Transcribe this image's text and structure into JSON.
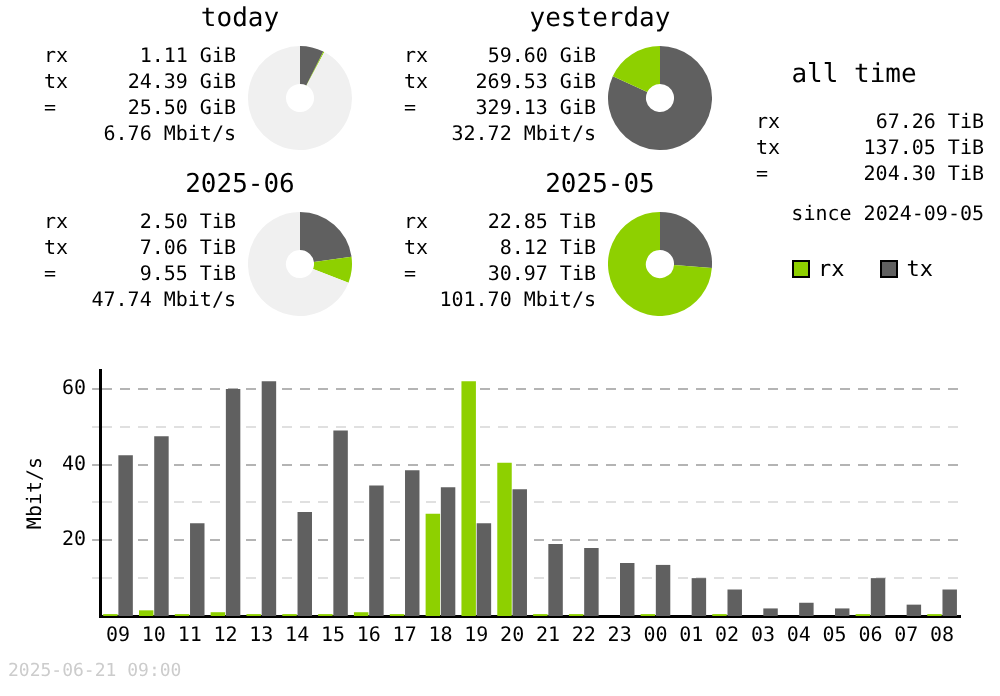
{
  "chart_data": [
    {
      "type": "donut",
      "title": "today",
      "categories": [
        null,
        null,
        null
      ],
      "values": [
        7.41,
        0.34,
        92.25
      ],
      "colors": [
        "#606060",
        "#8ed000",
        "#f0f0f0"
      ],
      "annotations": [
        "rx",
        "1.11 GiB",
        "tx",
        "24.39 GiB",
        "=",
        "25.50 GiB",
        "6.76 Mbit/s"
      ]
    },
    {
      "type": "donut",
      "title": "yesterday",
      "categories": [
        null,
        null
      ],
      "values": [
        81.89,
        18.11
      ],
      "colors": [
        "#606060",
        "#8ed000"
      ],
      "annotations": [
        "rx",
        "59.60 GiB",
        "tx",
        "269.53 GiB",
        "=",
        "329.13 GiB",
        "32.72 Mbit/s"
      ]
    },
    {
      "type": "donut",
      "title": "2025-06",
      "categories": [
        null,
        null,
        null
      ],
      "values": [
        22.8,
        8.07,
        69.13
      ],
      "colors": [
        "#606060",
        "#8ed000",
        "#f0f0f0"
      ],
      "annotations": [
        "rx",
        "2.50 TiB",
        "tx",
        "7.06 TiB",
        "=",
        "9.55 TiB",
        "47.74 Mbit/s"
      ]
    },
    {
      "type": "donut",
      "title": "2025-05",
      "categories": [
        null,
        null
      ],
      "values": [
        26.22,
        73.78
      ],
      "colors": [
        "#606060",
        "#8ed000"
      ],
      "annotations": [
        "rx",
        "22.85 TiB",
        "tx",
        "8.12 TiB",
        "=",
        "30.97 TiB",
        "101.70 Mbit/s"
      ]
    },
    {
      "type": "other",
      "title": "all time",
      "annotations": [
        "rx",
        "67.26 TiB",
        "tx",
        "137.05 TiB",
        "=",
        "204.30 TiB",
        "since 2024-09-05"
      ]
    },
    {
      "type": "bar",
      "ylabel": "Mbit/s",
      "categories": [
        "09",
        "10",
        "11",
        "12",
        "13",
        "14",
        "15",
        "16",
        "17",
        "18",
        "19",
        "20",
        "21",
        "22",
        "23",
        "00",
        "01",
        "02",
        "03",
        "04",
        "05",
        "06",
        "07",
        "08"
      ],
      "series": [
        {
          "name": "rx",
          "color": "#8ed000",
          "values": [
            0.5,
            1.5,
            0.5,
            1,
            0.5,
            0.5,
            0.5,
            1,
            0.5,
            27,
            62,
            40.5,
            0.5,
            0.5,
            0,
            0.5,
            0,
            0.5,
            0,
            0,
            0,
            0.5,
            0,
            0.5
          ]
        },
        {
          "name": "tx",
          "color": "#606060",
          "values": [
            42.5,
            47.5,
            24.5,
            60,
            62,
            27.5,
            49,
            34.5,
            38.5,
            34,
            24.5,
            33.5,
            19,
            18,
            14,
            13.5,
            10,
            7,
            2,
            3.5,
            2,
            10,
            3,
            7
          ]
        }
      ],
      "ylim": [
        0,
        65
      ],
      "yticks": [
        {
          "value": 10,
          "label": null
        },
        20,
        {
          "value": 30,
          "label": null
        },
        40,
        {
          "value": 50,
          "label": null
        },
        60
      ],
      "grid": "y",
      "legend": "top right",
      "annotations": [
        "2025-06-21 09:00"
      ]
    }
  ]
}
